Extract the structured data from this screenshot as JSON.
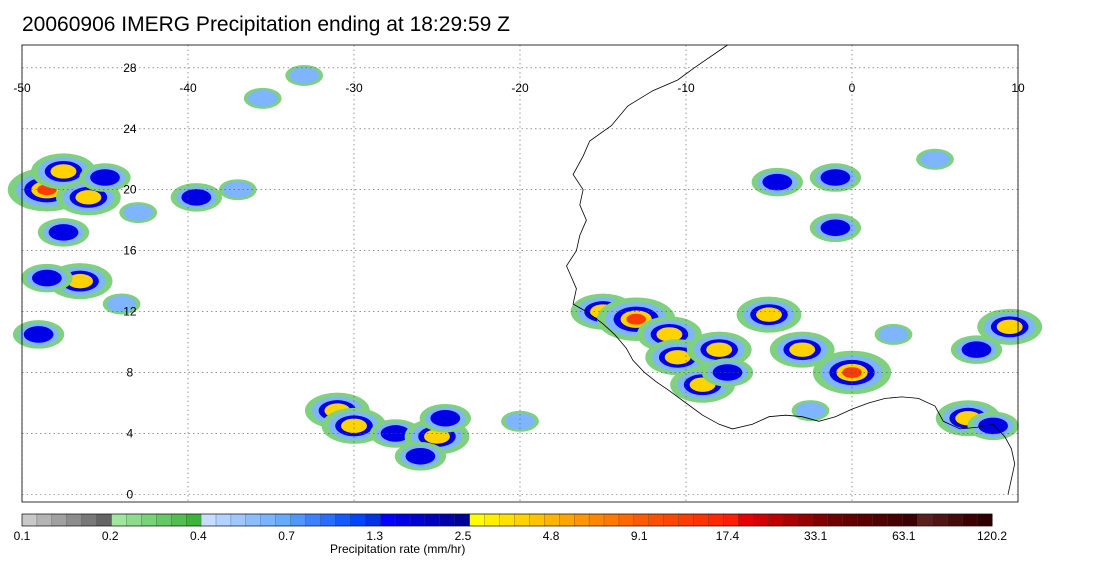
{
  "title": "20060906 IMERG Precipitation ending at 18:29:59 Z",
  "map": {
    "lon_range": [
      -50,
      10
    ],
    "lat_range": [
      -0.5,
      29.5
    ],
    "lon_ticks": [
      "-50",
      "-40",
      "-30",
      "-20",
      "-10",
      "0",
      "10"
    ],
    "lat_ticks": [
      "28",
      "24",
      "20",
      "16",
      "12",
      "8",
      "4",
      "0"
    ],
    "gridlines": "dotted"
  },
  "colorbar": {
    "label": "Precipitation rate (mm/hr)",
    "tick_labels": [
      "0.1",
      "0.2",
      "0.4",
      "0.7",
      "1.3",
      "2.5",
      "4.8",
      "9.1",
      "17.4",
      "33.1",
      "63.1",
      "120.2"
    ],
    "colors": [
      "#c8c8c8",
      "#b4b4b4",
      "#a0a0a0",
      "#8c8c8c",
      "#787878",
      "#646464",
      "#a0e6a0",
      "#8cdc8c",
      "#78d278",
      "#64c864",
      "#50be50",
      "#3cb43c",
      "#c8dcff",
      "#b4d2ff",
      "#a0c8ff",
      "#8cbeff",
      "#78b4ff",
      "#64aaff",
      "#5096ff",
      "#3c82ff",
      "#286eff",
      "#145aff",
      "#0046ff",
      "#0032e6",
      "#0000ff",
      "#0000e6",
      "#0000d2",
      "#0000be",
      "#0000aa",
      "#000096",
      "#ffff00",
      "#fff000",
      "#ffe100",
      "#ffd200",
      "#ffc300",
      "#ffb400",
      "#ffa500",
      "#ff9600",
      "#ff8700",
      "#ff7800",
      "#ff6900",
      "#ff5a00",
      "#ff5000",
      "#ff4600",
      "#ff3c00",
      "#ff3200",
      "#ff2800",
      "#ff1e00",
      "#e60000",
      "#d20000",
      "#be0000",
      "#aa0000",
      "#960000",
      "#820000",
      "#6e0000",
      "#640000",
      "#5a0000",
      "#500000",
      "#460000",
      "#3c0000",
      "#5a1e1e",
      "#501414",
      "#460a0a",
      "#3c0000",
      "#300000"
    ]
  },
  "precip_clusters": [
    {
      "lon": -48.5,
      "lat": 20.0,
      "level": 4
    },
    {
      "lon": -47.5,
      "lat": 21.2,
      "level": 3
    },
    {
      "lon": -46.0,
      "lat": 19.5,
      "level": 3
    },
    {
      "lon": -47.5,
      "lat": 17.2,
      "level": 2
    },
    {
      "lon": -46.5,
      "lat": 14.0,
      "level": 3
    },
    {
      "lon": -48.5,
      "lat": 14.2,
      "level": 2
    },
    {
      "lon": -45.0,
      "lat": 20.8,
      "level": 2
    },
    {
      "lon": -43.0,
      "lat": 18.5,
      "level": 1
    },
    {
      "lon": -49.0,
      "lat": 10.5,
      "level": 2
    },
    {
      "lon": -44.0,
      "lat": 12.5,
      "level": 1
    },
    {
      "lon": -39.5,
      "lat": 19.5,
      "level": 2
    },
    {
      "lon": -37.0,
      "lat": 20.0,
      "level": 1
    },
    {
      "lon": -33.0,
      "lat": 27.5,
      "level": 1
    },
    {
      "lon": -35.5,
      "lat": 26.0,
      "level": 1
    },
    {
      "lon": -31.0,
      "lat": 5.5,
      "level": 3
    },
    {
      "lon": -30.0,
      "lat": 4.5,
      "level": 3
    },
    {
      "lon": -27.5,
      "lat": 4.0,
      "level": 2
    },
    {
      "lon": -25.0,
      "lat": 3.8,
      "level": 3
    },
    {
      "lon": -24.5,
      "lat": 5.0,
      "level": 2
    },
    {
      "lon": -26.0,
      "lat": 2.5,
      "level": 2
    },
    {
      "lon": -20.0,
      "lat": 4.8,
      "level": 1
    },
    {
      "lon": -15.0,
      "lat": 12.0,
      "level": 3
    },
    {
      "lon": -13.0,
      "lat": 11.5,
      "level": 4
    },
    {
      "lon": -11.0,
      "lat": 10.5,
      "level": 3
    },
    {
      "lon": -10.5,
      "lat": 9.0,
      "level": 3
    },
    {
      "lon": -8.0,
      "lat": 9.5,
      "level": 3
    },
    {
      "lon": -9.0,
      "lat": 7.2,
      "level": 3
    },
    {
      "lon": -7.5,
      "lat": 8.0,
      "level": 2
    },
    {
      "lon": -5.0,
      "lat": 11.8,
      "level": 3
    },
    {
      "lon": -3.0,
      "lat": 9.5,
      "level": 3
    },
    {
      "lon": 0.0,
      "lat": 8.0,
      "level": 4
    },
    {
      "lon": -2.5,
      "lat": 5.5,
      "level": 1
    },
    {
      "lon": 7.0,
      "lat": 5.0,
      "level": 3
    },
    {
      "lon": 9.5,
      "lat": 11.0,
      "level": 3
    },
    {
      "lon": 7.5,
      "lat": 9.5,
      "level": 2
    },
    {
      "lon": 2.5,
      "lat": 10.5,
      "level": 1
    },
    {
      "lon": -4.5,
      "lat": 20.5,
      "level": 2
    },
    {
      "lon": -1.0,
      "lat": 20.8,
      "level": 2
    },
    {
      "lon": -1.0,
      "lat": 17.5,
      "level": 2
    },
    {
      "lon": 5.0,
      "lat": 22.0,
      "level": 1
    },
    {
      "lon": 8.5,
      "lat": 4.5,
      "level": 2
    }
  ],
  "coastline": [
    [
      -7.5,
      29.5
    ],
    [
      -9.5,
      28.0
    ],
    [
      -10.5,
      27.2
    ],
    [
      -12.0,
      26.5
    ],
    [
      -13.5,
      25.5
    ],
    [
      -14.5,
      24.2
    ],
    [
      -15.8,
      23.2
    ],
    [
      -16.2,
      22.2
    ],
    [
      -16.8,
      21.0
    ],
    [
      -16.2,
      20.0
    ],
    [
      -16.4,
      19.0
    ],
    [
      -16.0,
      18.0
    ],
    [
      -16.4,
      17.0
    ],
    [
      -16.6,
      16.0
    ],
    [
      -17.2,
      15.0
    ],
    [
      -17.0,
      14.5
    ],
    [
      -16.6,
      13.5
    ],
    [
      -16.8,
      12.5
    ],
    [
      -16.0,
      12.0
    ],
    [
      -15.0,
      11.2
    ],
    [
      -14.3,
      10.5
    ],
    [
      -13.6,
      9.6
    ],
    [
      -13.2,
      8.8
    ],
    [
      -12.5,
      8.0
    ],
    [
      -11.8,
      7.4
    ],
    [
      -11.0,
      6.8
    ],
    [
      -10.0,
      6.0
    ],
    [
      -9.0,
      5.2
    ],
    [
      -8.0,
      4.6
    ],
    [
      -7.2,
      4.3
    ],
    [
      -6.0,
      4.6
    ],
    [
      -5.0,
      5.1
    ],
    [
      -4.0,
      5.2
    ],
    [
      -3.0,
      5.1
    ],
    [
      -2.0,
      4.8
    ],
    [
      -1.0,
      5.1
    ],
    [
      0.0,
      5.6
    ],
    [
      1.0,
      6.0
    ],
    [
      2.0,
      6.3
    ],
    [
      3.0,
      6.4
    ],
    [
      4.0,
      6.3
    ],
    [
      5.0,
      5.8
    ],
    [
      5.5,
      4.8
    ],
    [
      6.5,
      4.3
    ],
    [
      7.5,
      4.4
    ],
    [
      8.5,
      4.6
    ],
    [
      9.2,
      3.8
    ],
    [
      9.6,
      3.0
    ],
    [
      9.8,
      2.0
    ],
    [
      9.6,
      1.0
    ],
    [
      9.4,
      0.0
    ]
  ]
}
